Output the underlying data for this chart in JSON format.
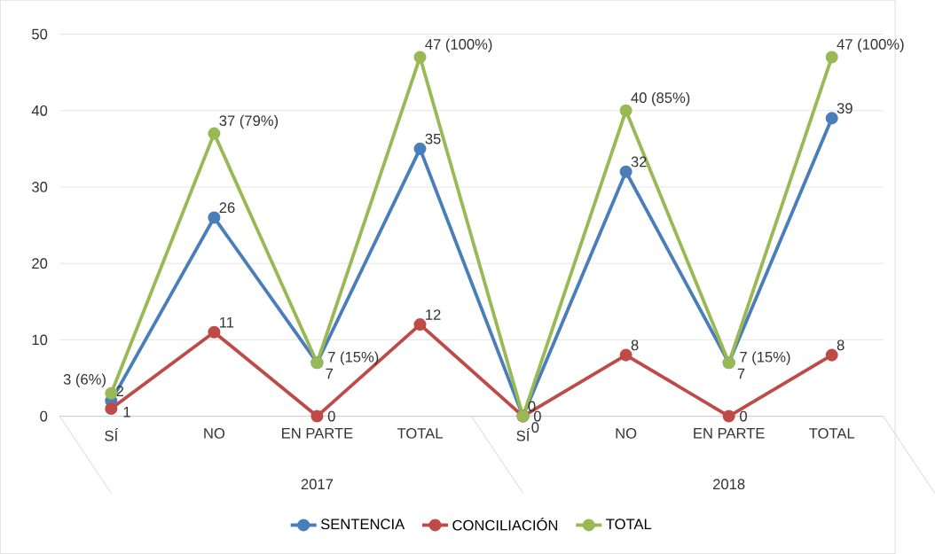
{
  "chart_data": {
    "type": "line",
    "categories": [
      "SÍ",
      "NO",
      "EN PARTE",
      "TOTAL",
      "SÍ",
      "NO",
      "EN PARTE",
      "TOTAL"
    ],
    "annotations": [
      "2017",
      "2018"
    ],
    "series": [
      {
        "name": "SENTENCIA",
        "color": "#4a7ebb",
        "values": [
          2,
          26,
          7,
          35,
          0,
          32,
          7,
          39
        ],
        "value_labels": [
          "2",
          "26",
          "7",
          "35",
          "0",
          "32",
          "7",
          "39"
        ]
      },
      {
        "name": "CONCILIACIÓN",
        "color": "#be4b48",
        "values": [
          1,
          11,
          0,
          12,
          0,
          8,
          0,
          8
        ],
        "value_labels": [
          "1",
          "11",
          "0",
          "12",
          "0",
          "8",
          "0",
          "8"
        ]
      },
      {
        "name": "TOTAL",
        "color": "#98b954",
        "values": [
          3,
          37,
          7,
          47,
          0,
          40,
          7,
          47
        ],
        "value_labels": [
          "3 (6%)",
          "37 (79%)",
          "7 (15%)",
          "47 (100%)",
          "0",
          "40 (85%)",
          "7 (15%)",
          "47 (100%)"
        ]
      }
    ],
    "ylim": [
      0,
      50
    ],
    "yticks": [
      0,
      10,
      20,
      30,
      40,
      50
    ],
    "grid": "y",
    "legend": "bottom",
    "marker": "circle",
    "line_style": "solid"
  }
}
